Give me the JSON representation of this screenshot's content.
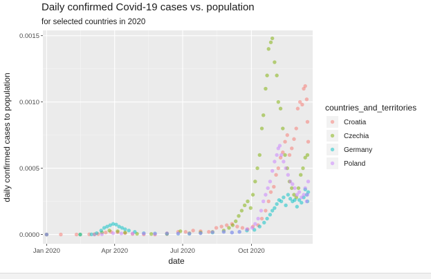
{
  "chart_data": {
    "type": "scatter",
    "title": "Daily confirmed Covid-19 cases vs. population",
    "subtitle": "for selected countries in 2020",
    "xlabel": "date",
    "ylabel": "daily confirmed cases to population",
    "x_axis_type": "date",
    "xlim": [
      "2019-12-27",
      "2020-12-22"
    ],
    "ylim": [
      -7e-05,
      0.00154
    ],
    "x_ticks": [
      {
        "value": "2020-01-01",
        "label": "Jan 2020"
      },
      {
        "value": "2020-04-01",
        "label": "Apr 2020"
      },
      {
        "value": "2020-07-01",
        "label": "Jul 2020"
      },
      {
        "value": "2020-10-01",
        "label": "Oct 2020"
      }
    ],
    "y_ticks": [
      {
        "value": 0,
        "label": "0.0000"
      },
      {
        "value": 0.0005,
        "label": "0.0005"
      },
      {
        "value": 0.001,
        "label": "0.0010"
      },
      {
        "value": 0.0015,
        "label": "0.0015"
      }
    ],
    "grid": true,
    "legend": {
      "title": "countries_and_territories",
      "placement": "right"
    },
    "series": [
      {
        "name": "Croatia",
        "color": "#F8766D",
        "points": [
          [
            "2020-01-01",
            0
          ],
          [
            "2020-01-20",
            0
          ],
          [
            "2020-02-10",
            0
          ],
          [
            "2020-02-27",
            1e-06
          ],
          [
            "2020-03-10",
            3e-06
          ],
          [
            "2020-03-20",
            1.5e-05
          ],
          [
            "2020-03-27",
            2e-05
          ],
          [
            "2020-04-05",
            1.7e-05
          ],
          [
            "2020-04-15",
            1e-05
          ],
          [
            "2020-04-25",
            4e-06
          ],
          [
            "2020-05-10",
            1e-06
          ],
          [
            "2020-05-25",
            0
          ],
          [
            "2020-06-10",
            3e-06
          ],
          [
            "2020-06-25",
            2e-05
          ],
          [
            "2020-07-05",
            2e-05
          ],
          [
            "2020-07-15",
            3e-05
          ],
          [
            "2020-07-25",
            2.5e-05
          ],
          [
            "2020-08-05",
            2e-05
          ],
          [
            "2020-08-15",
            5e-05
          ],
          [
            "2020-08-22",
            6e-05
          ],
          [
            "2020-08-29",
            7e-05
          ],
          [
            "2020-09-05",
            8e-05
          ],
          [
            "2020-09-12",
            6e-05
          ],
          [
            "2020-09-19",
            5e-05
          ],
          [
            "2020-09-26",
            4e-05
          ],
          [
            "2020-10-03",
            6e-05
          ],
          [
            "2020-10-10",
            7e-05
          ],
          [
            "2020-10-15",
            0.00012
          ],
          [
            "2020-10-20",
            0.00018
          ],
          [
            "2020-10-24",
            0.00025
          ],
          [
            "2020-10-27",
            0.00032
          ],
          [
            "2020-10-31",
            0.00036
          ],
          [
            "2020-11-03",
            0.00045
          ],
          [
            "2020-11-06",
            0.0005
          ],
          [
            "2020-11-09",
            0.00058
          ],
          [
            "2020-11-12",
            0.00062
          ],
          [
            "2020-11-15",
            0.0007
          ],
          [
            "2020-11-18",
            0.00075
          ],
          [
            "2020-11-21",
            0.0006
          ],
          [
            "2020-11-24",
            0.00065
          ],
          [
            "2020-11-27",
            0.00072
          ],
          [
            "2020-11-30",
            0.0008
          ],
          [
            "2020-12-02",
            0.00095
          ],
          [
            "2020-12-05",
            0.001
          ],
          [
            "2020-12-08",
            0.00098
          ],
          [
            "2020-12-10",
            0.0011
          ],
          [
            "2020-12-12",
            0.00112
          ],
          [
            "2020-12-14",
            0.00102
          ],
          [
            "2020-12-15",
            0.00085
          ],
          [
            "2020-12-16",
            0.0007
          ]
        ]
      },
      {
        "name": "Czechia",
        "color": "#7CAE00",
        "points": [
          [
            "2020-01-01",
            0
          ],
          [
            "2020-02-15",
            0
          ],
          [
            "2020-03-05",
            2e-06
          ],
          [
            "2020-03-15",
            1.5e-05
          ],
          [
            "2020-03-25",
            3e-05
          ],
          [
            "2020-04-05",
            2.5e-05
          ],
          [
            "2020-04-15",
            1.5e-05
          ],
          [
            "2020-05-01",
            5e-06
          ],
          [
            "2020-05-20",
            4e-06
          ],
          [
            "2020-06-10",
            8e-06
          ],
          [
            "2020-06-28",
            2.5e-05
          ],
          [
            "2020-07-10",
            1e-05
          ],
          [
            "2020-07-25",
            1.5e-05
          ],
          [
            "2020-08-10",
            2e-05
          ],
          [
            "2020-08-25",
            3e-05
          ],
          [
            "2020-09-01",
            5e-05
          ],
          [
            "2020-09-06",
            7e-05
          ],
          [
            "2020-09-10",
            0.0001
          ],
          [
            "2020-09-14",
            0.00014
          ],
          [
            "2020-09-18",
            0.00018
          ],
          [
            "2020-09-22",
            0.00022
          ],
          [
            "2020-09-26",
            0.00025
          ],
          [
            "2020-09-30",
            0.0002
          ],
          [
            "2020-10-03",
            0.0003
          ],
          [
            "2020-10-06",
            0.0004
          ],
          [
            "2020-10-09",
            0.0005
          ],
          [
            "2020-10-12",
            0.0006
          ],
          [
            "2020-10-15",
            0.0008
          ],
          [
            "2020-10-17",
            0.0009
          ],
          [
            "2020-10-20",
            0.0011
          ],
          [
            "2020-10-22",
            0.0012
          ],
          [
            "2020-10-24",
            0.0014
          ],
          [
            "2020-10-27",
            0.00145
          ],
          [
            "2020-10-29",
            0.00148
          ],
          [
            "2020-11-01",
            0.0013
          ],
          [
            "2020-11-04",
            0.0012
          ],
          [
            "2020-11-06",
            0.001
          ],
          [
            "2020-11-09",
            0.00095
          ],
          [
            "2020-11-12",
            0.0008
          ],
          [
            "2020-11-15",
            0.0006
          ],
          [
            "2020-11-18",
            0.0005
          ],
          [
            "2020-11-21",
            0.0004
          ],
          [
            "2020-11-24",
            0.00035
          ],
          [
            "2020-11-27",
            0.0003
          ],
          [
            "2020-11-30",
            0.00028
          ],
          [
            "2020-12-03",
            0.00035
          ],
          [
            "2020-12-06",
            0.00045
          ],
          [
            "2020-12-09",
            0.0005
          ],
          [
            "2020-12-12",
            0.00058
          ],
          [
            "2020-12-15",
            0.0006
          ]
        ]
      },
      {
        "name": "Germany",
        "color": "#00BFC4",
        "points": [
          [
            "2020-01-01",
            0
          ],
          [
            "2020-02-15",
            0
          ],
          [
            "2020-03-01",
            1e-06
          ],
          [
            "2020-03-08",
            1e-05
          ],
          [
            "2020-03-14",
            3e-05
          ],
          [
            "2020-03-18",
            5e-05
          ],
          [
            "2020-03-22",
            6e-05
          ],
          [
            "2020-03-26",
            7e-05
          ],
          [
            "2020-03-30",
            8e-05
          ],
          [
            "2020-04-03",
            7.5e-05
          ],
          [
            "2020-04-07",
            6e-05
          ],
          [
            "2020-04-11",
            5e-05
          ],
          [
            "2020-04-15",
            4e-05
          ],
          [
            "2020-04-20",
            3e-05
          ],
          [
            "2020-04-28",
            2e-05
          ],
          [
            "2020-05-10",
            1e-05
          ],
          [
            "2020-05-25",
            8e-06
          ],
          [
            "2020-06-10",
            5e-06
          ],
          [
            "2020-06-25",
            6e-06
          ],
          [
            "2020-07-10",
            5e-06
          ],
          [
            "2020-07-25",
            1e-05
          ],
          [
            "2020-08-10",
            1.5e-05
          ],
          [
            "2020-08-25",
            2e-05
          ],
          [
            "2020-09-05",
            1.5e-05
          ],
          [
            "2020-09-15",
            2e-05
          ],
          [
            "2020-09-25",
            3e-05
          ],
          [
            "2020-10-05",
            3.5e-05
          ],
          [
            "2020-10-12",
            6e-05
          ],
          [
            "2020-10-18",
            9e-05
          ],
          [
            "2020-10-22",
            0.00012
          ],
          [
            "2020-10-26",
            0.00015
          ],
          [
            "2020-10-29",
            0.00018
          ],
          [
            "2020-11-01",
            0.0002
          ],
          [
            "2020-11-04",
            0.00023
          ],
          [
            "2020-11-07",
            0.00026
          ],
          [
            "2020-11-10",
            0.00025
          ],
          [
            "2020-11-13",
            0.00028
          ],
          [
            "2020-11-16",
            0.00022
          ],
          [
            "2020-11-19",
            0.0003
          ],
          [
            "2020-11-22",
            0.00027
          ],
          [
            "2020-11-25",
            0.00025
          ],
          [
            "2020-11-28",
            0.00026
          ],
          [
            "2020-12-01",
            0.00021
          ],
          [
            "2020-12-04",
            0.00026
          ],
          [
            "2020-12-07",
            0.00024
          ],
          [
            "2020-12-10",
            0.00028
          ],
          [
            "2020-12-12",
            0.00034
          ],
          [
            "2020-12-14",
            0.0003
          ],
          [
            "2020-12-15",
            0.00025
          ],
          [
            "2020-12-16",
            0.00032
          ]
        ]
      },
      {
        "name": "Poland",
        "color": "#C77CFF",
        "points": [
          [
            "2020-01-01",
            0
          ],
          [
            "2020-03-05",
            0
          ],
          [
            "2020-03-15",
            2e-06
          ],
          [
            "2020-03-30",
            1e-05
          ],
          [
            "2020-04-10",
            8e-06
          ],
          [
            "2020-04-25",
            8e-06
          ],
          [
            "2020-05-10",
            7e-06
          ],
          [
            "2020-05-25",
            6e-06
          ],
          [
            "2020-06-10",
            1e-05
          ],
          [
            "2020-06-25",
            8e-06
          ],
          [
            "2020-07-10",
            8e-06
          ],
          [
            "2020-07-25",
            1e-05
          ],
          [
            "2020-08-10",
            1.8e-05
          ],
          [
            "2020-08-25",
            2e-05
          ],
          [
            "2020-09-05",
            1.5e-05
          ],
          [
            "2020-09-15",
            2e-05
          ],
          [
            "2020-09-25",
            4e-05
          ],
          [
            "2020-10-02",
            5e-05
          ],
          [
            "2020-10-06",
            8e-05
          ],
          [
            "2020-10-10",
            0.00012
          ],
          [
            "2020-10-14",
            0.00018
          ],
          [
            "2020-10-17",
            0.00025
          ],
          [
            "2020-10-20",
            0.0003
          ],
          [
            "2020-10-23",
            0.00035
          ],
          [
            "2020-10-26",
            0.0004
          ],
          [
            "2020-10-29",
            0.00048
          ],
          [
            "2020-11-01",
            0.00055
          ],
          [
            "2020-11-04",
            0.0006
          ],
          [
            "2020-11-06",
            0.00065
          ],
          [
            "2020-11-08",
            0.00067
          ],
          [
            "2020-11-10",
            0.0006
          ],
          [
            "2020-11-13",
            0.00055
          ],
          [
            "2020-11-16",
            0.0005
          ],
          [
            "2020-11-19",
            0.00045
          ],
          [
            "2020-11-22",
            0.0004
          ],
          [
            "2020-11-25",
            0.00038
          ],
          [
            "2020-11-28",
            0.00035
          ],
          [
            "2020-12-01",
            0.0003
          ],
          [
            "2020-12-04",
            0.00032
          ],
          [
            "2020-12-07",
            0.00028
          ],
          [
            "2020-12-10",
            0.0003
          ],
          [
            "2020-12-12",
            0.00035
          ],
          [
            "2020-12-14",
            0.00025
          ],
          [
            "2020-12-15",
            0.0003
          ],
          [
            "2020-12-16",
            0.0004
          ]
        ]
      }
    ]
  }
}
